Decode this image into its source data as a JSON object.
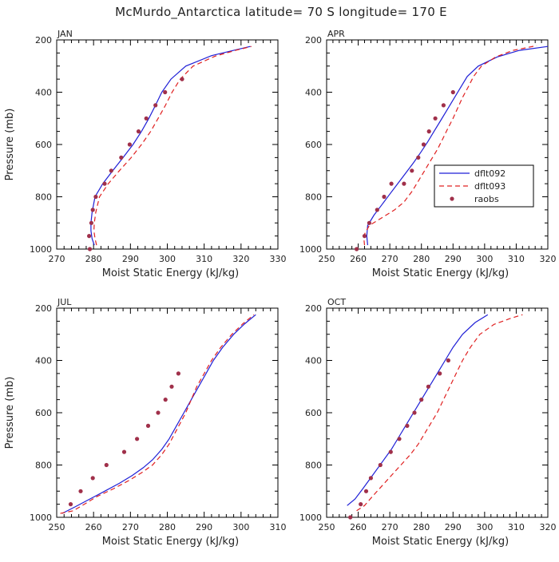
{
  "figure": {
    "title": "McMurdo_Antarctica   latitude= 70 S longitude= 170 E"
  },
  "colors": {
    "dflt092": "#1f1fd6",
    "dflt093": "#e02020",
    "raobs": "#a0304a",
    "axis": "#000000"
  },
  "chart_data": [
    {
      "type": "line",
      "panel": "JAN",
      "title": "JAN",
      "xlabel": "Moist Static Energy (kJ/kg)",
      "ylabel": "Pressure (mb)",
      "xlim": [
        270,
        330
      ],
      "ylim": [
        1000,
        200
      ],
      "xticks": [
        270,
        280,
        290,
        300,
        310,
        320,
        330
      ],
      "yticks": [
        200,
        400,
        600,
        800,
        1000
      ],
      "legend": false,
      "series": [
        {
          "name": "dflt092",
          "style": "solid",
          "points": [
            [
              280.2,
              985
            ],
            [
              279.6,
              960
            ],
            [
              279.3,
              930
            ],
            [
              279.3,
              900
            ],
            [
              279.6,
              860
            ],
            [
              280.4,
              800
            ],
            [
              282.5,
              750
            ],
            [
              285.2,
              700
            ],
            [
              288.0,
              650
            ],
            [
              290.7,
              600
            ],
            [
              293.0,
              550
            ],
            [
              295.0,
              500
            ],
            [
              296.8,
              450
            ],
            [
              298.5,
              400
            ],
            [
              301.0,
              350
            ],
            [
              305.0,
              300
            ],
            [
              312.0,
              260
            ],
            [
              318.0,
              240
            ],
            [
              322.5,
              225
            ]
          ]
        },
        {
          "name": "dflt093",
          "style": "dashed",
          "points": [
            [
              280.8,
              985
            ],
            [
              280.4,
              960
            ],
            [
              280.1,
              930
            ],
            [
              280.2,
              900
            ],
            [
              280.6,
              860
            ],
            [
              281.6,
              800
            ],
            [
              284.0,
              750
            ],
            [
              287.0,
              700
            ],
            [
              290.2,
              650
            ],
            [
              293.0,
              600
            ],
            [
              295.5,
              550
            ],
            [
              297.5,
              500
            ],
            [
              299.5,
              450
            ],
            [
              301.3,
              400
            ],
            [
              303.5,
              350
            ],
            [
              307.0,
              300
            ],
            [
              313.0,
              262
            ],
            [
              318.5,
              240
            ],
            [
              322.8,
              225
            ]
          ]
        }
      ],
      "scatter": {
        "name": "raobs",
        "points": [
          [
            279.0,
            1000
          ],
          [
            278.8,
            950
          ],
          [
            279.4,
            900
          ],
          [
            279.8,
            850
          ],
          [
            280.6,
            800
          ],
          [
            283.0,
            750
          ],
          [
            284.8,
            700
          ],
          [
            287.5,
            650
          ],
          [
            289.8,
            600
          ],
          [
            292.2,
            550
          ],
          [
            294.3,
            500
          ],
          [
            296.8,
            450
          ],
          [
            299.4,
            400
          ],
          [
            304.0,
            350
          ]
        ]
      }
    },
    {
      "type": "line",
      "panel": "APR",
      "title": "APR",
      "xlabel": "Moist Static Energy (kJ/kg)",
      "ylabel": "",
      "xlim": [
        250,
        320
      ],
      "ylim": [
        1000,
        200
      ],
      "xticks": [
        250,
        260,
        270,
        280,
        290,
        300,
        310,
        320
      ],
      "yticks": [
        200,
        400,
        600,
        800,
        1000
      ],
      "legend": true,
      "legend_position": "right-middle",
      "legend_entries": [
        "dflt092",
        "dflt093",
        "raobs"
      ],
      "series": [
        {
          "name": "dflt092",
          "style": "solid",
          "points": [
            [
              263.0,
              985
            ],
            [
              262.7,
              950
            ],
            [
              263.0,
              910
            ],
            [
              265.0,
              870
            ],
            [
              267.5,
              830
            ],
            [
              270.0,
              790
            ],
            [
              272.5,
              750
            ],
            [
              275.0,
              710
            ],
            [
              277.5,
              670
            ],
            [
              279.8,
              630
            ],
            [
              282.0,
              590
            ],
            [
              284.0,
              550
            ],
            [
              286.0,
              510
            ],
            [
              288.0,
              470
            ],
            [
              290.0,
              430
            ],
            [
              292.0,
              390
            ],
            [
              294.5,
              340
            ],
            [
              298.0,
              300
            ],
            [
              304.0,
              265
            ],
            [
              311.0,
              240
            ],
            [
              320.0,
              225
            ]
          ]
        },
        {
          "name": "dflt093",
          "style": "dashed",
          "points": [
            [
              262.0,
              985
            ],
            [
              261.7,
              950
            ],
            [
              263.5,
              910
            ],
            [
              267.5,
              880
            ],
            [
              271.5,
              850
            ],
            [
              274.5,
              820
            ],
            [
              277.0,
              780
            ],
            [
              279.0,
              740
            ],
            [
              281.0,
              700
            ],
            [
              283.0,
              660
            ],
            [
              285.0,
              620
            ],
            [
              286.7,
              580
            ],
            [
              288.3,
              540
            ],
            [
              290.0,
              500
            ],
            [
              291.5,
              460
            ],
            [
              293.0,
              420
            ],
            [
              294.8,
              380
            ],
            [
              296.5,
              340
            ],
            [
              299.0,
              300
            ],
            [
              303.5,
              265
            ],
            [
              309.0,
              240
            ],
            [
              316.5,
              222
            ]
          ]
        }
      ],
      "scatter": {
        "name": "raobs",
        "points": [
          [
            259.5,
            1000
          ],
          [
            262.0,
            950
          ],
          [
            263.5,
            900
          ],
          [
            266.0,
            850
          ],
          [
            268.2,
            800
          ],
          [
            270.5,
            750
          ],
          [
            274.5,
            750
          ],
          [
            277.0,
            700
          ],
          [
            279.0,
            650
          ],
          [
            280.7,
            600
          ],
          [
            282.4,
            550
          ],
          [
            284.4,
            500
          ],
          [
            287.0,
            450
          ],
          [
            290.0,
            400
          ]
        ]
      }
    },
    {
      "type": "line",
      "panel": "JUL",
      "title": "JUL",
      "xlabel": "Moist Static Energy (kJ/kg)",
      "ylabel": "Pressure (mb)",
      "xlim": [
        250,
        310
      ],
      "ylim": [
        1000,
        200
      ],
      "xticks": [
        250,
        260,
        270,
        280,
        290,
        300,
        310
      ],
      "yticks": [
        200,
        400,
        600,
        800,
        1000
      ],
      "legend": false,
      "series": [
        {
          "name": "dflt092",
          "style": "solid",
          "points": [
            [
              251.5,
              985
            ],
            [
              255.0,
              960
            ],
            [
              259.0,
              930
            ],
            [
              263.0,
              900
            ],
            [
              267.0,
              870
            ],
            [
              270.5,
              840
            ],
            [
              273.5,
              810
            ],
            [
              276.0,
              780
            ],
            [
              278.5,
              740
            ],
            [
              280.5,
              700
            ],
            [
              282.5,
              650
            ],
            [
              284.5,
              600
            ],
            [
              286.5,
              550
            ],
            [
              288.5,
              500
            ],
            [
              290.5,
              450
            ],
            [
              292.5,
              400
            ],
            [
              295.0,
              350
            ],
            [
              298.0,
              300
            ],
            [
              301.0,
              260
            ],
            [
              304.0,
              225
            ]
          ]
        },
        {
          "name": "dflt093",
          "style": "dashed",
          "points": [
            [
              251.0,
              985
            ],
            [
              254.5,
              975
            ],
            [
              257.5,
              950
            ],
            [
              261.0,
              920
            ],
            [
              265.5,
              890
            ],
            [
              269.5,
              860
            ],
            [
              273.0,
              830
            ],
            [
              276.0,
              800
            ],
            [
              278.5,
              760
            ],
            [
              280.5,
              720
            ],
            [
              282.0,
              680
            ],
            [
              283.5,
              640
            ],
            [
              285.0,
              600
            ],
            [
              286.5,
              550
            ],
            [
              288.0,
              500
            ],
            [
              290.0,
              450
            ],
            [
              292.0,
              400
            ],
            [
              294.5,
              350
            ],
            [
              297.5,
              300
            ],
            [
              300.5,
              260
            ],
            [
              303.5,
              225
            ]
          ]
        }
      ],
      "scatter": {
        "name": "raobs",
        "points": [
          [
            253.8,
            950
          ],
          [
            256.5,
            900
          ],
          [
            259.8,
            850
          ],
          [
            263.5,
            800
          ],
          [
            268.3,
            750
          ],
          [
            271.8,
            700
          ],
          [
            274.8,
            650
          ],
          [
            277.5,
            600
          ],
          [
            279.5,
            550
          ],
          [
            281.2,
            500
          ],
          [
            283.0,
            450
          ]
        ]
      }
    },
    {
      "type": "line",
      "panel": "OCT",
      "title": "OCT",
      "xlabel": "Moist Static Energy (kJ/kg)",
      "ylabel": "",
      "xlim": [
        250,
        320
      ],
      "ylim": [
        1000,
        200
      ],
      "xticks": [
        250,
        260,
        270,
        280,
        290,
        300,
        310,
        320
      ],
      "yticks": [
        200,
        400,
        600,
        800,
        1000
      ],
      "legend": false,
      "series": [
        {
          "name": "dflt092",
          "style": "solid",
          "points": [
            [
              256.5,
              955
            ],
            [
              259.0,
              930
            ],
            [
              261.5,
              890
            ],
            [
              264.5,
              840
            ],
            [
              267.5,
              790
            ],
            [
              270.5,
              740
            ],
            [
              273.0,
              690
            ],
            [
              275.5,
              640
            ],
            [
              277.5,
              600
            ],
            [
              279.5,
              560
            ],
            [
              281.5,
              520
            ],
            [
              283.5,
              480
            ],
            [
              285.5,
              440
            ],
            [
              287.5,
              400
            ],
            [
              290.0,
              350
            ],
            [
              293.0,
              300
            ],
            [
              297.0,
              255
            ],
            [
              301.0,
              225
            ]
          ]
        },
        {
          "name": "dflt093",
          "style": "dashed",
          "points": [
            [
              259.5,
              975
            ],
            [
              262.0,
              955
            ],
            [
              264.5,
              920
            ],
            [
              267.5,
              880
            ],
            [
              270.5,
              840
            ],
            [
              273.5,
              800
            ],
            [
              276.5,
              760
            ],
            [
              279.0,
              720
            ],
            [
              281.0,
              680
            ],
            [
              283.0,
              640
            ],
            [
              285.0,
              600
            ],
            [
              287.0,
              550
            ],
            [
              289.0,
              500
            ],
            [
              291.0,
              450
            ],
            [
              293.0,
              400
            ],
            [
              295.5,
              350
            ],
            [
              298.5,
              300
            ],
            [
              303.0,
              262
            ],
            [
              308.0,
              240
            ],
            [
              312.0,
              225
            ]
          ]
        }
      ],
      "scatter": {
        "name": "raobs",
        "points": [
          [
            257.5,
            1000
          ],
          [
            260.8,
            950
          ],
          [
            262.5,
            900
          ],
          [
            264.0,
            850
          ],
          [
            267.0,
            800
          ],
          [
            270.3,
            750
          ],
          [
            273.0,
            700
          ],
          [
            275.5,
            650
          ],
          [
            277.8,
            600
          ],
          [
            280.0,
            550
          ],
          [
            282.2,
            500
          ],
          [
            285.8,
            450
          ],
          [
            288.5,
            400
          ]
        ]
      }
    }
  ]
}
